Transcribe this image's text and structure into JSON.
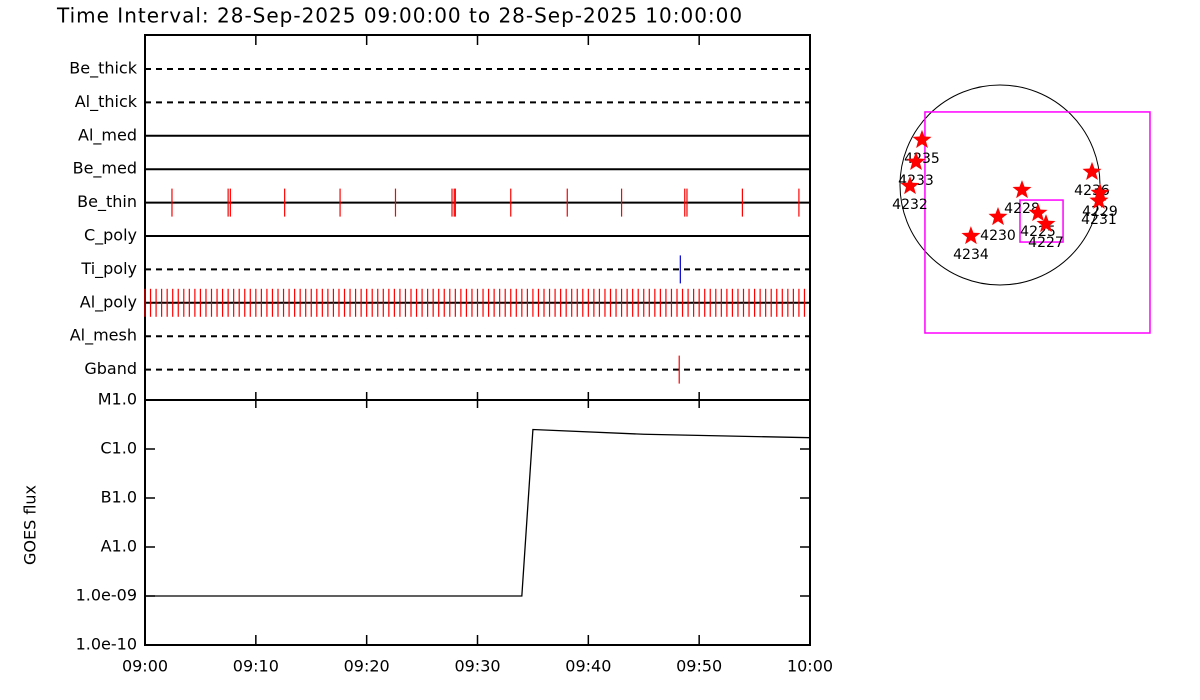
{
  "chart_data": [
    {
      "type": "timeline",
      "title": "Time Interval: 28-Sep-2025 09:00:00 to 28-Sep-2025 10:00:00",
      "xlim": [
        "09:00",
        "10:00"
      ],
      "rows": [
        {
          "name": "Be_thick",
          "style": "dashed",
          "color": "#ff0000",
          "events": []
        },
        {
          "name": "Al_thick",
          "style": "dashed",
          "color": "#ff0000",
          "events": []
        },
        {
          "name": "Al_med",
          "style": "solid",
          "color": "#ff0000",
          "events": []
        },
        {
          "name": "Be_med",
          "style": "solid",
          "color": "#ff0000",
          "events": []
        },
        {
          "name": "Be_thin",
          "style": "solid",
          "color": "#ff0000",
          "events": [
            "09:02:26",
            "09:07:30",
            "09:07:42",
            "09:12:36",
            "09:17:36",
            "09:22:36",
            "09:27:42",
            "09:27:54",
            "09:28:00",
            "09:33:00",
            "09:38:06",
            "09:43:00",
            "09:48:42",
            "09:48:54",
            "09:53:54",
            "09:59:00"
          ]
        },
        {
          "name": "C_poly",
          "style": "solid",
          "color": "#ff0000",
          "events": []
        },
        {
          "name": "Ti_poly",
          "style": "dashed",
          "color": "#0000cc",
          "events": [
            "09:48:18"
          ]
        },
        {
          "name": "Al_poly",
          "style": "solid",
          "color": "#ff0000",
          "events": [
            "09:00:00",
            "09:00:30",
            "09:01:00",
            "09:01:30",
            "09:02:00",
            "09:02:30",
            "09:03:00",
            "09:03:30",
            "09:04:00",
            "09:04:30",
            "09:05:00",
            "09:05:30",
            "09:06:00",
            "09:06:30",
            "09:07:00",
            "09:07:30",
            "09:08:00",
            "09:08:30",
            "09:09:00",
            "09:09:30",
            "09:10:00",
            "09:10:30",
            "09:11:00",
            "09:11:30",
            "09:12:00",
            "09:12:30",
            "09:13:00",
            "09:13:30",
            "09:14:00",
            "09:14:30",
            "09:15:00",
            "09:15:30",
            "09:16:00",
            "09:16:30",
            "09:17:00",
            "09:17:30",
            "09:18:00",
            "09:18:30",
            "09:19:00",
            "09:19:30",
            "09:20:00",
            "09:20:30",
            "09:21:00",
            "09:21:30",
            "09:22:00",
            "09:22:30",
            "09:23:00",
            "09:23:30",
            "09:24:00",
            "09:24:30",
            "09:25:00",
            "09:25:30",
            "09:26:00",
            "09:26:30",
            "09:27:00",
            "09:27:30",
            "09:28:00",
            "09:28:30",
            "09:29:00",
            "09:29:30",
            "09:30:00",
            "09:30:30",
            "09:31:00",
            "09:31:30",
            "09:32:00",
            "09:32:30",
            "09:33:00",
            "09:33:30",
            "09:34:00",
            "09:34:30",
            "09:35:00",
            "09:35:30",
            "09:36:00",
            "09:36:30",
            "09:37:00",
            "09:37:30",
            "09:38:00",
            "09:38:30",
            "09:39:00",
            "09:39:30",
            "09:40:00",
            "09:40:30",
            "09:41:00",
            "09:41:30",
            "09:42:00",
            "09:42:30",
            "09:43:00",
            "09:43:30",
            "09:44:00",
            "09:44:30",
            "09:45:00",
            "09:45:30",
            "09:46:00",
            "09:46:30",
            "09:47:00",
            "09:47:30",
            "09:48:00",
            "09:48:30",
            "09:49:00",
            "09:49:30",
            "09:50:00",
            "09:50:30",
            "09:51:00",
            "09:51:30",
            "09:52:00",
            "09:52:30",
            "09:53:00",
            "09:53:30",
            "09:54:00",
            "09:54:30",
            "09:55:00",
            "09:55:30",
            "09:56:00",
            "09:56:30",
            "09:57:00",
            "09:57:30",
            "09:58:00",
            "09:58:30",
            "09:59:00",
            "09:59:30"
          ]
        },
        {
          "name": "Al_mesh",
          "style": "dashed",
          "color": "#ff0000",
          "events": []
        },
        {
          "name": "Gband",
          "style": "dashed",
          "color": "#ff0000",
          "events": [
            "09:48:12"
          ]
        }
      ]
    },
    {
      "type": "line",
      "y_label": "GOES flux",
      "log": true,
      "ylim": [
        1e-10,
        1e-05
      ],
      "yticks": [
        {
          "value": 1e-10,
          "label": "1.0e-10"
        },
        {
          "value": 1e-09,
          "label": "1.0e-09"
        },
        {
          "value": 1e-08,
          "label": "A1.0"
        },
        {
          "value": 1e-07,
          "label": "B1.0"
        },
        {
          "value": 1e-06,
          "label": "C1.0"
        },
        {
          "value": 1e-05,
          "label": "M1.0"
        }
      ],
      "xlim": [
        "09:00",
        "10:00"
      ],
      "xticks": [
        "09:00",
        "09:10",
        "09:20",
        "09:30",
        "09:40",
        "09:50",
        "10:00"
      ],
      "x": [
        "09:00",
        "09:34",
        "09:35",
        "09:45",
        "10:00"
      ],
      "values": [
        1e-09,
        1e-09,
        2.5e-06,
        2e-06,
        1.7e-06
      ],
      "color": "#000000"
    },
    {
      "type": "scatter",
      "sun_radius": 950,
      "color": "#ff0000",
      "box_color": "#ff00ff",
      "boxes": [
        {
          "x": [
            -713,
            1425
          ],
          "y": [
            -1406,
            694
          ]
        },
        {
          "x": [
            190,
            599
          ],
          "y": [
            -542,
            -143
          ]
        }
      ],
      "labels": [
        "4235",
        "4233",
        "4232",
        "4228",
        "4225",
        "4227",
        "4230",
        "4234",
        "4236",
        "4229",
        "4231"
      ],
      "x": [
        -741,
        -798,
        -855,
        209,
        361,
        437,
        -19,
        -276,
        874,
        950,
        940
      ],
      "values": [
        428,
        219,
        -10,
        -48,
        -266,
        -371,
        -304,
        -485,
        124,
        -76,
        -150
      ]
    }
  ]
}
